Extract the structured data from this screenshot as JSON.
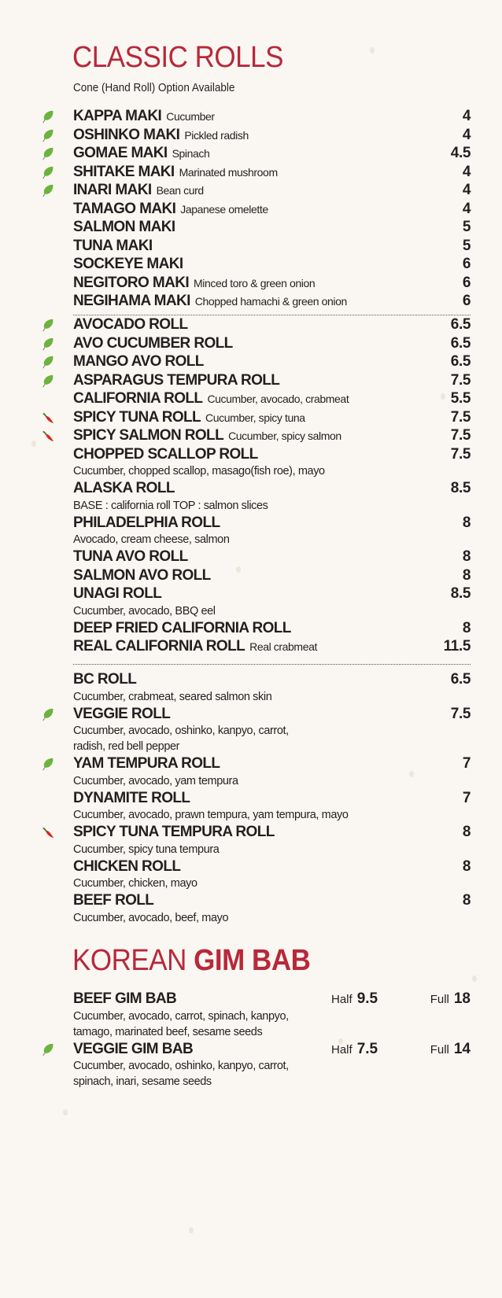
{
  "classic": {
    "title": "CLASSIC ROLLS",
    "subtitle": "Cone (Hand Roll) Option Available",
    "groups": [
      [
        {
          "name": "KAPPA MAKI",
          "note": "Cucumber",
          "price": "4",
          "icon": "leaf"
        },
        {
          "name": "OSHINKO MAKI",
          "note": "Pickled radish",
          "price": "4",
          "icon": "leaf"
        },
        {
          "name": "GOMAE MAKI",
          "note": "Spinach",
          "price": "4.5",
          "icon": "leaf"
        },
        {
          "name": "SHITAKE MAKI",
          "note": "Marinated mushroom",
          "price": "4",
          "icon": "leaf"
        },
        {
          "name": "INARI MAKI",
          "note": "Bean curd",
          "price": "4",
          "icon": "leaf"
        },
        {
          "name": "TAMAGO MAKI",
          "note": "Japanese omelette",
          "price": "4"
        },
        {
          "name": "SALMON MAKI",
          "price": "5"
        },
        {
          "name": "TUNA MAKI",
          "price": "5"
        },
        {
          "name": "SOCKEYE MAKI",
          "price": "6"
        },
        {
          "name": "NEGITORO MAKI",
          "note": "Minced toro & green onion",
          "price": "6"
        },
        {
          "name": "NEGIHAMA MAKI",
          "note": "Chopped hamachi & green onion",
          "price": "6"
        }
      ],
      [
        {
          "name": "AVOCADO ROLL",
          "price": "6.5",
          "icon": "leaf"
        },
        {
          "name": "AVO CUCUMBER ROLL",
          "price": "6.5",
          "icon": "leaf"
        },
        {
          "name": "MANGO AVO ROLL",
          "price": "6.5",
          "icon": "leaf"
        },
        {
          "name": "ASPARAGUS TEMPURA ROLL",
          "price": "7.5",
          "icon": "leaf"
        },
        {
          "name": "CALIFORNIA ROLL",
          "note": "Cucumber, avocado, crabmeat",
          "price": "5.5"
        },
        {
          "name": "SPICY TUNA ROLL",
          "note": "Cucumber, spicy tuna",
          "price": "7.5",
          "icon": "chili"
        },
        {
          "name": "SPICY SALMON ROLL",
          "note": "Cucumber, spicy salmon",
          "price": "7.5",
          "icon": "chili"
        },
        {
          "name": "CHOPPED SCALLOP ROLL",
          "desc": [
            "Cucumber, chopped scallop, masago(fish roe), mayo"
          ],
          "price": "7.5"
        },
        {
          "name": "ALASKA ROLL",
          "desc": [
            "BASE : california roll  TOP : salmon slices"
          ],
          "price": "8.5"
        },
        {
          "name": "PHILADELPHIA ROLL",
          "desc": [
            "Avocado, cream cheese, salmon"
          ],
          "price": "8"
        },
        {
          "name": "TUNA AVO ROLL",
          "price": "8"
        },
        {
          "name": "SALMON AVO ROLL",
          "price": "8"
        },
        {
          "name": "UNAGI ROLL",
          "desc": [
            "Cucumber, avocado, BBQ eel"
          ],
          "price": "8.5"
        },
        {
          "name": "DEEP FRIED CALIFORNIA ROLL",
          "price": "8"
        },
        {
          "name": "REAL CALIFORNIA ROLL",
          "note": "Real crabmeat",
          "price": "11.5"
        }
      ],
      [
        {
          "name": "BC ROLL",
          "desc": [
            "Cucumber, crabmeat, seared salmon skin"
          ],
          "price": "6.5"
        },
        {
          "name": "VEGGIE ROLL",
          "desc": [
            "Cucumber, avocado, oshinko, kanpyo, carrot,",
            "radish, red bell pepper"
          ],
          "price": "7.5",
          "icon": "leaf"
        },
        {
          "name": "YAM TEMPURA ROLL",
          "desc": [
            "Cucumber, avocado, yam tempura"
          ],
          "price": "7",
          "icon": "leaf"
        },
        {
          "name": "DYNAMITE ROLL",
          "desc": [
            "Cucumber, avocado, prawn tempura, yam tempura, mayo"
          ],
          "price": "7"
        },
        {
          "name": "SPICY TUNA TEMPURA ROLL",
          "desc": [
            "Cucumber, spicy tuna tempura"
          ],
          "price": "8",
          "icon": "chili"
        },
        {
          "name": "CHICKEN ROLL",
          "desc": [
            "Cucumber, chicken, mayo"
          ],
          "price": "8"
        },
        {
          "name": "BEEF ROLL",
          "desc": [
            "Cucumber, avocado, beef, mayo"
          ],
          "price": "8"
        }
      ]
    ]
  },
  "korean": {
    "title_light": "KOREAN",
    "title_bold": "GIM BAB",
    "half_label": "Half",
    "full_label": "Full",
    "items": [
      {
        "name": "BEEF GIM BAB",
        "desc": [
          "Cucumber, avocado, carrot, spinach, kanpyo,",
          "tamago, marinated beef, sesame seeds"
        ],
        "half": "9.5",
        "full": "18"
      },
      {
        "name": "VEGGIE GIM BAB",
        "desc": [
          "Cucumber, avocado, oshinko, kanpyo, carrot,",
          "spinach, inari, sesame seeds"
        ],
        "half": "7.5",
        "full": "14",
        "icon": "leaf"
      }
    ]
  },
  "colors": {
    "accent": "#b8283a",
    "leaf": "#6cb33f",
    "chili": "#d42a1e",
    "text": "#231f20"
  }
}
